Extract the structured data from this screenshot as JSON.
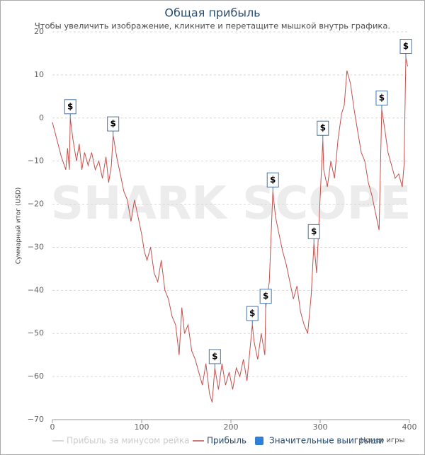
{
  "chart_data": {
    "type": "line",
    "title": "Общая прибыль",
    "subtitle": "Чтобы увеличить изображение, кликните и перетащите мышкой внутрь графика.",
    "y_label": "Суммарный итог (USD)",
    "x_label": "Номер игры",
    "watermark": "SHARK SCOPE",
    "xlim": [
      0,
      400
    ],
    "xticks": [
      0,
      100,
      200,
      300,
      400
    ],
    "ylim": [
      -70,
      20
    ],
    "yticks": [
      20,
      10,
      0,
      {
        "value": -10,
        "label": "−10"
      },
      {
        "value": -20,
        "label": "−20"
      },
      {
        "value": -30,
        "label": "−30"
      },
      {
        "value": -40,
        "label": "−40"
      },
      {
        "value": -50,
        "label": "−50"
      },
      {
        "value": -60,
        "label": "−60"
      },
      {
        "value": -70,
        "label": "−70"
      }
    ],
    "grid": true,
    "flag_text": "$",
    "series": [
      {
        "name": "Прибыль за минусом рейка",
        "color": "#cccccc",
        "visible": false
      },
      {
        "name": "Прибыль",
        "color": "#c0504d",
        "x": [
          0,
          5,
          10,
          15,
          17,
          19,
          20,
          23,
          27,
          30,
          33,
          36,
          40,
          44,
          48,
          52,
          56,
          60,
          63,
          66,
          68,
          72,
          76,
          80,
          84,
          88,
          92,
          96,
          100,
          103,
          106,
          110,
          114,
          118,
          122,
          126,
          130,
          134,
          138,
          142,
          145,
          148,
          152,
          156,
          160,
          164,
          168,
          172,
          176,
          179,
          182,
          186,
          190,
          194,
          198,
          202,
          206,
          210,
          214,
          218,
          224,
          226,
          230,
          234,
          238,
          239,
          243,
          247,
          250,
          254,
          258,
          262,
          266,
          270,
          274,
          278,
          282,
          286,
          290,
          293,
          296,
          303,
          304,
          308,
          312,
          316,
          320,
          324,
          327,
          330,
          334,
          338,
          342,
          346,
          350,
          354,
          358,
          362,
          366,
          369,
          372,
          376,
          380,
          384,
          388,
          392,
          394,
          396,
          398
        ],
        "values": [
          -1,
          -5,
          -9,
          -12,
          -7,
          -12,
          0,
          -5,
          -10,
          -6,
          -12,
          -8,
          -11,
          -8,
          -12,
          -10,
          -14,
          -9,
          -15,
          -11,
          -4,
          -9,
          -13,
          -17,
          -19,
          -24,
          -19,
          -23,
          -27,
          -31,
          -33,
          -30,
          -36,
          -38,
          -33,
          -40,
          -42,
          -46,
          -48,
          -55,
          -44,
          -50,
          -48,
          -54,
          -56,
          -59,
          -62,
          -57,
          -64,
          -66,
          -58,
          -63,
          -57,
          -62,
          -59,
          -63,
          -58,
          -60,
          -56,
          -61,
          -48,
          -52,
          -56,
          -50,
          -55,
          -44,
          -38,
          -17,
          -23,
          -27,
          -31,
          -34,
          -38,
          -42,
          -39,
          -45,
          -48,
          -50,
          -41,
          -29,
          -36,
          -5,
          -12,
          -16,
          -10,
          -14,
          -5,
          1,
          3,
          11,
          8,
          2,
          -3,
          -8,
          -10,
          -15,
          -18,
          -22,
          -26,
          2,
          -2,
          -8,
          -11,
          -14,
          -13,
          -16,
          -11,
          14,
          12
        ]
      },
      {
        "name": "Значительные выигрыши",
        "color": "#4572a7",
        "x": [
          20,
          68,
          182,
          224,
          239,
          247,
          293,
          303,
          369,
          396
        ],
        "values": [
          0,
          -4,
          -58,
          -48,
          -44,
          -17,
          -29,
          -5,
          2,
          14
        ]
      }
    ]
  }
}
